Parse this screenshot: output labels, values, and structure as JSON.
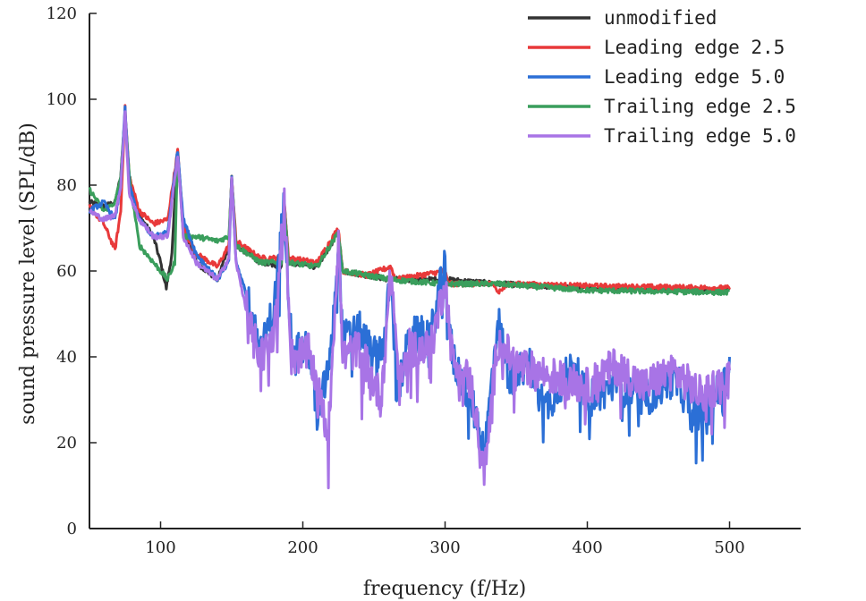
{
  "chart_data": {
    "type": "line",
    "xlabel": "frequency (f/Hz)",
    "ylabel": "sound pressure level (SPL/dB)",
    "xlim": [
      50,
      550
    ],
    "ylim": [
      0,
      120
    ],
    "xticks": [
      100,
      200,
      300,
      400,
      500
    ],
    "yticks": [
      0,
      20,
      40,
      60,
      80,
      100,
      120
    ],
    "grid": false,
    "legend_position": "top-right",
    "peak_frequencies": [
      75,
      112,
      150,
      187,
      225,
      262,
      300,
      337
    ],
    "series": [
      {
        "name": "unmodified",
        "color": "#333333",
        "values": [
          [
            50,
            76
          ],
          [
            60,
            75
          ],
          [
            68,
            76
          ],
          [
            72,
            82
          ],
          [
            75,
            97
          ],
          [
            78,
            82
          ],
          [
            85,
            73
          ],
          [
            95,
            68
          ],
          [
            100,
            62
          ],
          [
            104,
            56
          ],
          [
            108,
            64
          ],
          [
            112,
            88
          ],
          [
            116,
            70
          ],
          [
            125,
            62
          ],
          [
            140,
            58
          ],
          [
            148,
            66
          ],
          [
            150,
            82
          ],
          [
            153,
            66
          ],
          [
            170,
            62
          ],
          [
            185,
            61
          ],
          [
            187,
            76
          ],
          [
            190,
            62
          ],
          [
            210,
            61
          ],
          [
            225,
            69
          ],
          [
            228,
            60
          ],
          [
            262,
            58
          ],
          [
            300,
            58
          ],
          [
            337,
            57
          ],
          [
            400,
            56
          ],
          [
            500,
            55.5
          ]
        ]
      },
      {
        "name": "Leading edge 2.5",
        "color": "#e8393a",
        "values": [
          [
            50,
            75
          ],
          [
            60,
            71
          ],
          [
            68,
            65
          ],
          [
            72,
            74
          ],
          [
            75,
            98
          ],
          [
            78,
            82
          ],
          [
            85,
            74
          ],
          [
            95,
            71
          ],
          [
            105,
            72
          ],
          [
            112,
            88
          ],
          [
            116,
            70
          ],
          [
            125,
            64
          ],
          [
            140,
            61
          ],
          [
            148,
            66
          ],
          [
            150,
            82
          ],
          [
            153,
            67
          ],
          [
            170,
            63
          ],
          [
            185,
            63
          ],
          [
            187,
            76
          ],
          [
            190,
            63
          ],
          [
            210,
            62
          ],
          [
            225,
            70
          ],
          [
            228,
            60
          ],
          [
            245,
            59
          ],
          [
            262,
            61
          ],
          [
            265,
            58
          ],
          [
            300,
            60
          ],
          [
            302,
            57
          ],
          [
            335,
            57
          ],
          [
            337,
            55
          ],
          [
            345,
            57
          ],
          [
            400,
            56.5
          ],
          [
            500,
            56
          ]
        ]
      },
      {
        "name": "Leading edge 5.0",
        "color": "#2b6fd6",
        "values": [
          [
            50,
            74
          ],
          [
            60,
            76
          ],
          [
            68,
            72
          ],
          [
            72,
            80
          ],
          [
            75,
            98
          ],
          [
            78,
            80
          ],
          [
            85,
            72
          ],
          [
            95,
            68
          ],
          [
            105,
            69
          ],
          [
            112,
            88
          ],
          [
            116,
            72
          ],
          [
            125,
            64
          ],
          [
            140,
            58
          ],
          [
            148,
            62
          ],
          [
            150,
            82
          ],
          [
            153,
            62
          ],
          [
            165,
            50
          ],
          [
            170,
            40
          ],
          [
            180,
            52
          ],
          [
            187,
            76
          ],
          [
            192,
            43
          ],
          [
            205,
            41
          ],
          [
            210,
            25
          ],
          [
            220,
            41
          ],
          [
            225,
            68
          ],
          [
            228,
            44
          ],
          [
            240,
            46
          ],
          [
            250,
            40
          ],
          [
            258,
            44
          ],
          [
            262,
            62
          ],
          [
            266,
            30
          ],
          [
            275,
            45
          ],
          [
            290,
            45
          ],
          [
            300,
            62
          ],
          [
            305,
            40
          ],
          [
            320,
            28
          ],
          [
            328,
            18
          ],
          [
            337,
            49
          ],
          [
            345,
            35
          ],
          [
            360,
            38
          ],
          [
            370,
            28
          ],
          [
            390,
            38
          ],
          [
            400,
            30
          ],
          [
            420,
            34
          ],
          [
            440,
            30
          ],
          [
            460,
            35
          ],
          [
            480,
            26
          ],
          [
            500,
            36
          ]
        ]
      },
      {
        "name": "Trailing edge 2.5",
        "color": "#3a9e5c",
        "values": [
          [
            50,
            79
          ],
          [
            60,
            74
          ],
          [
            68,
            76
          ],
          [
            72,
            82
          ],
          [
            75,
            97
          ],
          [
            78,
            82
          ],
          [
            85,
            66
          ],
          [
            95,
            62
          ],
          [
            100,
            60
          ],
          [
            105,
            58
          ],
          [
            110,
            62
          ],
          [
            112,
            88
          ],
          [
            116,
            68
          ],
          [
            125,
            68
          ],
          [
            140,
            67
          ],
          [
            148,
            68
          ],
          [
            150,
            82
          ],
          [
            153,
            66
          ],
          [
            170,
            62
          ],
          [
            185,
            62
          ],
          [
            187,
            75
          ],
          [
            190,
            62
          ],
          [
            210,
            61
          ],
          [
            225,
            69
          ],
          [
            228,
            60
          ],
          [
            262,
            58
          ],
          [
            300,
            57
          ],
          [
            337,
            57
          ],
          [
            400,
            55.5
          ],
          [
            500,
            55
          ]
        ]
      },
      {
        "name": "Trailing edge 5.0",
        "color": "#a874e6",
        "values": [
          [
            50,
            74
          ],
          [
            60,
            72
          ],
          [
            68,
            73
          ],
          [
            72,
            80
          ],
          [
            75,
            97
          ],
          [
            78,
            78
          ],
          [
            85,
            72
          ],
          [
            95,
            68
          ],
          [
            105,
            68
          ],
          [
            112,
            87
          ],
          [
            116,
            68
          ],
          [
            125,
            62
          ],
          [
            140,
            58
          ],
          [
            148,
            63
          ],
          [
            150,
            82
          ],
          [
            153,
            62
          ],
          [
            165,
            44
          ],
          [
            172,
            40
          ],
          [
            180,
            46
          ],
          [
            187,
            75
          ],
          [
            192,
            40
          ],
          [
            205,
            41
          ],
          [
            212,
            30
          ],
          [
            218,
            22
          ],
          [
            225,
            68
          ],
          [
            228,
            40
          ],
          [
            240,
            42
          ],
          [
            255,
            30
          ],
          [
            262,
            60
          ],
          [
            268,
            33
          ],
          [
            275,
            42
          ],
          [
            290,
            42
          ],
          [
            300,
            58
          ],
          [
            305,
            40
          ],
          [
            318,
            34
          ],
          [
            328,
            13
          ],
          [
            337,
            44
          ],
          [
            350,
            38
          ],
          [
            370,
            36
          ],
          [
            400,
            33
          ],
          [
            420,
            38
          ],
          [
            440,
            33
          ],
          [
            460,
            37
          ],
          [
            480,
            31
          ],
          [
            500,
            35
          ]
        ]
      }
    ]
  }
}
